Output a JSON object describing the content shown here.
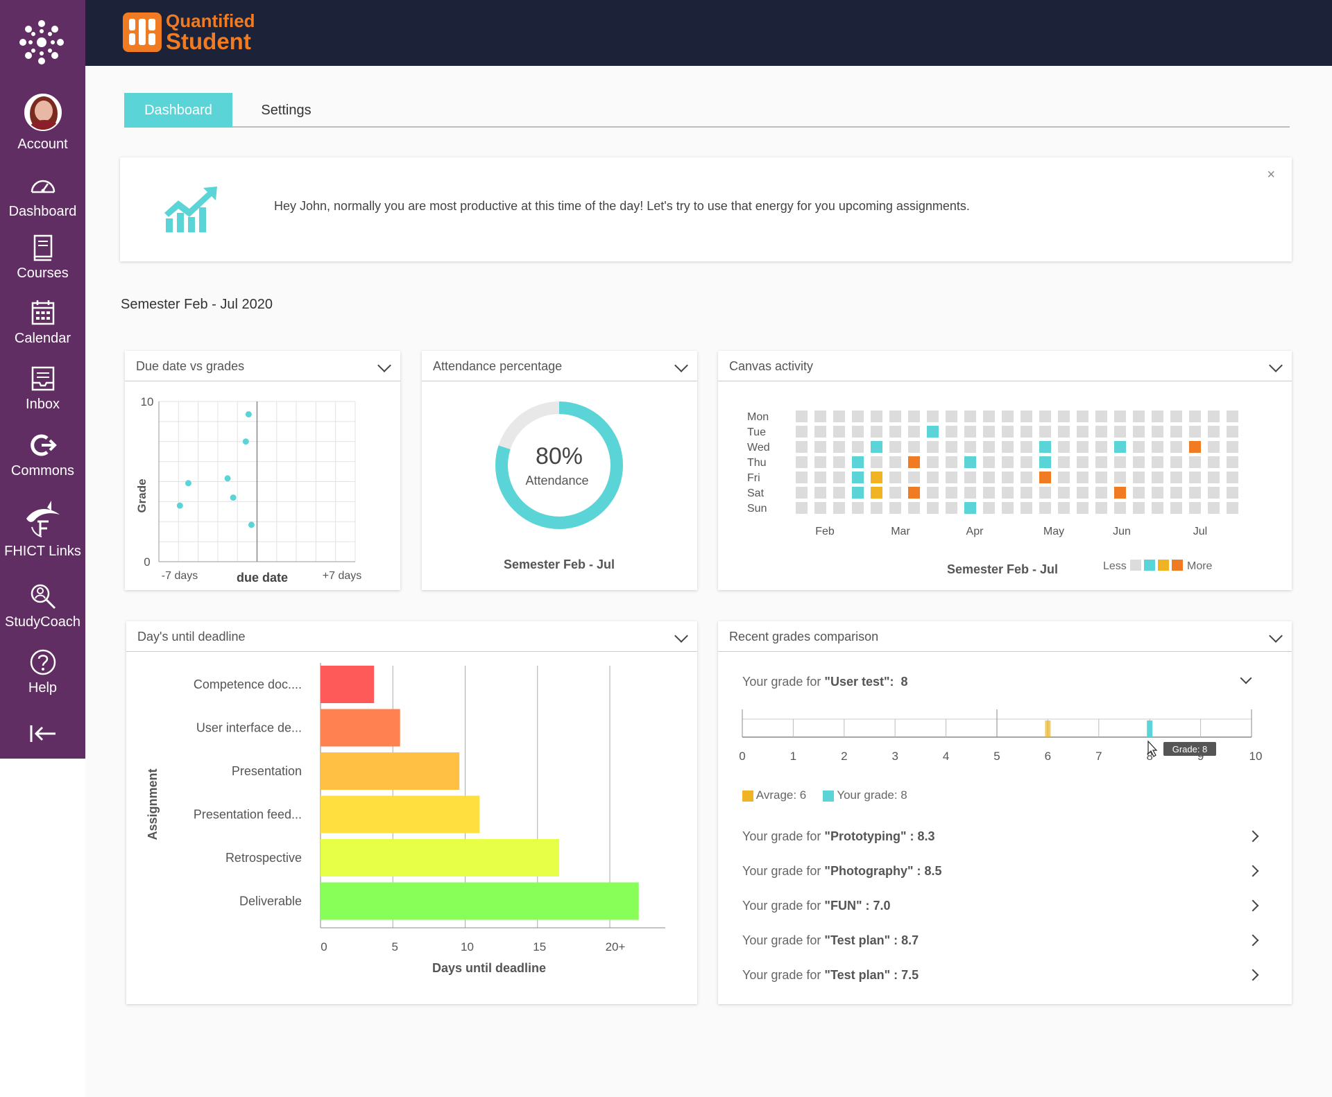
{
  "nav": {
    "items": [
      {
        "label": "Account"
      },
      {
        "label": "Dashboard"
      },
      {
        "label": "Courses"
      },
      {
        "label": "Calendar"
      },
      {
        "label": "Inbox"
      },
      {
        "label": "Commons"
      },
      {
        "label": "FHICT Links"
      },
      {
        "label": "StudyCoach"
      },
      {
        "label": "Help"
      }
    ]
  },
  "brand": {
    "line1": "Quantified",
    "line2": "Student",
    "color": "#f07b22"
  },
  "tabs": [
    {
      "label": "Dashboard",
      "active": true
    },
    {
      "label": "Settings",
      "active": false
    }
  ],
  "notice": {
    "message": "Hey John, normally you are most productive at this time of the day! Let's try to use that energy for you upcoming assignments.",
    "close": "×",
    "icon": "trending-up-chart-icon"
  },
  "semester_title": "Semester Feb - Jul 2020",
  "cards": {
    "due_date": {
      "title": "Due date vs grades"
    },
    "attendance": {
      "title": "Attendance percentage",
      "percent": "80%",
      "label": "Attendance",
      "footer": "Semester Feb - Jul",
      "value": 0.8
    },
    "canvas": {
      "title": "Canvas activity",
      "footer": "Semester Feb - Jul",
      "less": "Less",
      "more": "More",
      "days": [
        "Mon",
        "Tue",
        "Wed",
        "Thu",
        "Fri",
        "Sat",
        "Sun"
      ],
      "months": [
        "Feb",
        "Mar",
        "Apr",
        "May",
        "Jun",
        "Jul"
      ]
    },
    "deadline": {
      "title": "Day's until deadline"
    },
    "grades": {
      "title": "Recent grades comparison",
      "main": {
        "prefix": "Your grade for ",
        "course": "\"User test\"",
        "sep": ":",
        "value": "8"
      },
      "tooltip": "Grade: 8",
      "legend_avg": "Avrage: 6",
      "legend_you": "Your grade: 8",
      "rows": [
        {
          "prefix": "Your grade for ",
          "course": "\"Prototyping\"",
          "value": " : 8.3"
        },
        {
          "prefix": "Your grade for ",
          "course": "\"Photography\"",
          "value": " : 8.5"
        },
        {
          "prefix": "Your grade for ",
          "course": "\"FUN\"",
          "value": " : 7.0"
        },
        {
          "prefix": "Your grade for ",
          "course": "\"Test plan\"",
          "value": " : 8.7"
        },
        {
          "prefix": "Your grade for ",
          "course": "\"Test plan\"",
          "value": " : 7.5"
        }
      ]
    }
  },
  "chart_data": [
    {
      "type": "scatter",
      "title": "Due date vs grades",
      "xlabel": "due date",
      "ylabel": "Grade",
      "ylim": [
        0,
        10
      ],
      "xlim": [
        -7,
        7
      ],
      "x_ticks": [
        "-7 days",
        "due date",
        "+7 days"
      ],
      "y_ticks": [
        "10",
        "0"
      ],
      "points": [
        {
          "x": -5.5,
          "y": 3.5
        },
        {
          "x": -4.9,
          "y": 4.9
        },
        {
          "x": -2.1,
          "y": 5.2
        },
        {
          "x": -1.7,
          "y": 4.0
        },
        {
          "x": -0.8,
          "y": 7.5
        },
        {
          "x": -0.6,
          "y": 9.2
        },
        {
          "x": -0.4,
          "y": 2.3
        }
      ],
      "color": "#5bd4d8"
    },
    {
      "type": "pie",
      "title": "Attendance percentage",
      "values": [
        80,
        20
      ],
      "labels": [
        "Attendance",
        ""
      ],
      "colors": [
        "#5bd4d8",
        "#e8e8e8"
      ]
    },
    {
      "type": "heatmap",
      "title": "Canvas activity",
      "rows": [
        "Mon",
        "Tue",
        "Wed",
        "Thu",
        "Fri",
        "Sat",
        "Sun"
      ],
      "x_labels": [
        "Feb",
        "Mar",
        "Apr",
        "May",
        "Jun",
        "Jul"
      ],
      "columns": 24,
      "levels": {
        "0": "#dcdcdc",
        "1": "#5bd4d8",
        "2": "#f0b323",
        "3": "#f07b22"
      },
      "cells": [
        {
          "row": 1,
          "col": 7,
          "level": 1
        },
        {
          "row": 2,
          "col": 4,
          "level": 1
        },
        {
          "row": 2,
          "col": 13,
          "level": 1
        },
        {
          "row": 2,
          "col": 17,
          "level": 1
        },
        {
          "row": 2,
          "col": 21,
          "level": 3
        },
        {
          "row": 3,
          "col": 3,
          "level": 1
        },
        {
          "row": 3,
          "col": 6,
          "level": 3
        },
        {
          "row": 3,
          "col": 9,
          "level": 1
        },
        {
          "row": 3,
          "col": 13,
          "level": 1
        },
        {
          "row": 4,
          "col": 3,
          "level": 1
        },
        {
          "row": 4,
          "col": 4,
          "level": 2
        },
        {
          "row": 4,
          "col": 13,
          "level": 3
        },
        {
          "row": 5,
          "col": 3,
          "level": 1
        },
        {
          "row": 5,
          "col": 4,
          "level": 2
        },
        {
          "row": 5,
          "col": 6,
          "level": 3
        },
        {
          "row": 5,
          "col": 17,
          "level": 3
        },
        {
          "row": 6,
          "col": 9,
          "level": 1
        }
      ]
    },
    {
      "type": "bar",
      "orientation": "horizontal",
      "title": "Day's until deadline",
      "xlabel": "Days until deadline",
      "ylabel": "Assignment",
      "categories": [
        "Competence doc....",
        "User interface de...",
        "Presentation",
        "Presentation feed...",
        "Retrospective",
        "Deliverable"
      ],
      "values": [
        3.7,
        5.5,
        9.6,
        11.0,
        16.5,
        22.0
      ],
      "colors": [
        "#ff5a5a",
        "#ff8050",
        "#ffc043",
        "#ffdf3f",
        "#e8ff48",
        "#88ff58"
      ],
      "x_ticks": [
        "0",
        "5",
        "10",
        "15",
        "20+"
      ],
      "xlim": [
        0,
        23.5
      ]
    },
    {
      "type": "bar",
      "title": "Your grade for \"User test\"",
      "xlim": [
        0,
        10
      ],
      "x_ticks": [
        "0",
        "1",
        "2",
        "3",
        "4",
        "5",
        "6",
        "7",
        "8",
        "9",
        "10"
      ],
      "series": [
        {
          "name": "Avrage",
          "value": 6,
          "color": "#f0b323"
        },
        {
          "name": "Your grade",
          "value": 8,
          "color": "#5bd4d8"
        }
      ]
    }
  ]
}
